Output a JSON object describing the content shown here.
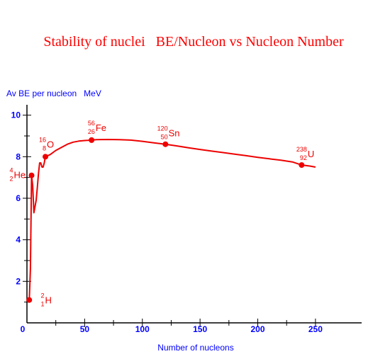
{
  "chart_data": {
    "type": "line",
    "title": "Stability of nuclei   BE/Nucleon vs Nucleon Number",
    "ylabel": "Av BE per nucleon   MeV",
    "xlabel": "Number of nucleons",
    "xlim": [
      0,
      290
    ],
    "ylim": [
      0,
      10.5
    ],
    "x_ticks": [
      0,
      50,
      100,
      150,
      200,
      250
    ],
    "y_ticks": [
      2,
      4,
      6,
      8,
      10
    ],
    "color": "#ee0000",
    "axis_color": "#000000",
    "series": [
      {
        "points": [
          [
            2,
            1.1
          ],
          [
            3,
            2.6
          ],
          [
            4,
            7.1
          ],
          [
            5,
            6.6
          ],
          [
            6,
            5.3
          ],
          [
            7,
            5.6
          ],
          [
            8,
            5.9
          ],
          [
            9,
            6.5
          ],
          [
            10,
            7.2
          ],
          [
            11,
            7.7
          ],
          [
            12,
            7.7
          ],
          [
            13,
            7.5
          ],
          [
            14,
            7.5
          ],
          [
            15,
            7.7
          ],
          [
            16,
            8.0
          ],
          [
            20,
            8.1
          ],
          [
            25,
            8.3
          ],
          [
            30,
            8.45
          ],
          [
            35,
            8.6
          ],
          [
            40,
            8.7
          ],
          [
            45,
            8.75
          ],
          [
            50,
            8.78
          ],
          [
            56,
            8.8
          ],
          [
            60,
            8.82
          ],
          [
            70,
            8.83
          ],
          [
            80,
            8.82
          ],
          [
            90,
            8.8
          ],
          [
            100,
            8.74
          ],
          [
            110,
            8.67
          ],
          [
            120,
            8.6
          ],
          [
            130,
            8.52
          ],
          [
            140,
            8.43
          ],
          [
            150,
            8.35
          ],
          [
            160,
            8.27
          ],
          [
            170,
            8.2
          ],
          [
            180,
            8.12
          ],
          [
            190,
            8.05
          ],
          [
            200,
            7.97
          ],
          [
            210,
            7.9
          ],
          [
            220,
            7.83
          ],
          [
            230,
            7.75
          ],
          [
            238,
            7.6
          ],
          [
            245,
            7.55
          ],
          [
            250,
            7.5
          ]
        ]
      }
    ],
    "nuclides": [
      {
        "symbol": "H",
        "mass": "2",
        "atomic": "1",
        "x": 2,
        "y": 1.1
      },
      {
        "symbol": "He",
        "mass": "4",
        "atomic": "2",
        "x": 4,
        "y": 7.1
      },
      {
        "symbol": "O",
        "mass": "16",
        "atomic": "8",
        "x": 16,
        "y": 8.0
      },
      {
        "symbol": "Fe",
        "mass": "56",
        "atomic": "26",
        "x": 56,
        "y": 8.8
      },
      {
        "symbol": "Sn",
        "mass": "120",
        "atomic": "50",
        "x": 120,
        "y": 8.6
      },
      {
        "symbol": "U",
        "mass": "238",
        "atomic": "92",
        "x": 238,
        "y": 7.6
      }
    ]
  }
}
